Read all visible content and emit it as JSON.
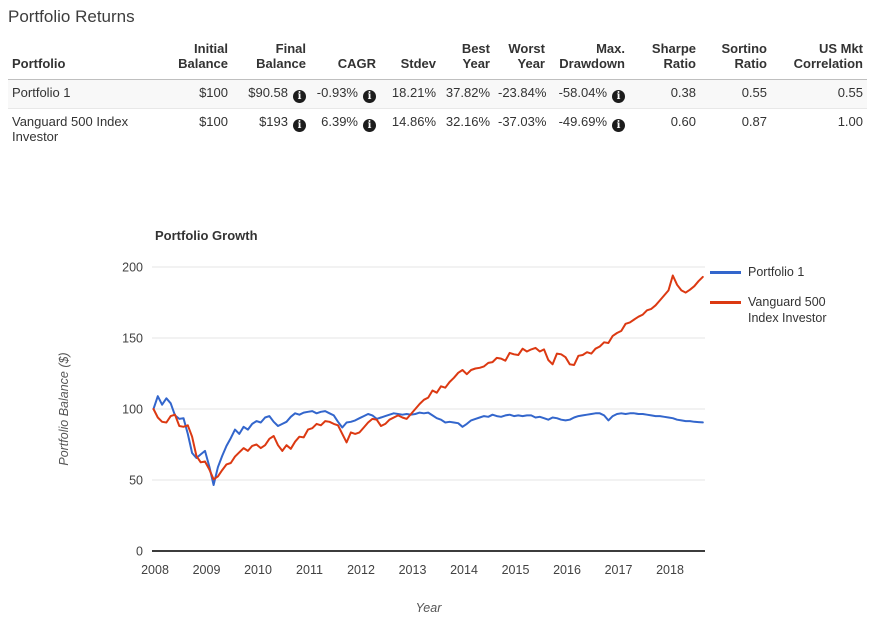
{
  "page_title": "Portfolio Returns",
  "table": {
    "columns": [
      "Portfolio",
      "Initial Balance",
      "Final Balance",
      "CAGR",
      "Stdev",
      "Best Year",
      "Worst Year",
      "Max. Drawdown",
      "Sharpe Ratio",
      "Sortino Ratio",
      "US Mkt Correlation"
    ],
    "rows": [
      {
        "portfolio": "Portfolio 1",
        "initial_balance": "$100",
        "final_balance": "$90.58",
        "cagr": "-0.93%",
        "stdev": "18.21%",
        "best_year": "37.82%",
        "worst_year": "-23.84%",
        "max_drawdown": "-58.04%",
        "sharpe_ratio": "0.38",
        "sortino_ratio": "0.55",
        "us_mkt_correlation": "0.55"
      },
      {
        "portfolio": "Vanguard 500 Index Investor",
        "initial_balance": "$100",
        "final_balance": "$193",
        "cagr": "6.39%",
        "stdev": "14.86%",
        "best_year": "32.16%",
        "worst_year": "-37.03%",
        "max_drawdown": "-49.69%",
        "sharpe_ratio": "0.60",
        "sortino_ratio": "0.87",
        "us_mkt_correlation": "1.00"
      }
    ]
  },
  "chart_data": {
    "type": "line",
    "title": "Portfolio Growth",
    "xlabel": "Year",
    "ylabel": "Portfolio Balance ($)",
    "x_start_year": 2008,
    "x_step_months": 1,
    "x_end": "2018-08",
    "x_ticks": [
      2008,
      2009,
      2010,
      2011,
      2012,
      2013,
      2014,
      2015,
      2016,
      2017,
      2018
    ],
    "y_ticks": [
      0,
      50,
      100,
      150,
      200
    ],
    "ylim": [
      0,
      210
    ],
    "grid": true,
    "legend_position": "right",
    "series": [
      {
        "name": "Portfolio 1",
        "legend_lines": [
          "Portfolio 1"
        ],
        "color": "#3366cc",
        "values": [
          100,
          109,
          103,
          107.5,
          104,
          95.5,
          93,
          93.5,
          82.5,
          69,
          65.5,
          68,
          70.5,
          59.5,
          46.5,
          59,
          67,
          74,
          79.5,
          85.5,
          82.5,
          87.5,
          85.5,
          89.5,
          91.5,
          90.5,
          94,
          95,
          91,
          88,
          89.5,
          91,
          94.5,
          97,
          96,
          97.5,
          98,
          98.5,
          97,
          98,
          98.5,
          97,
          95.5,
          91,
          87,
          90.5,
          91,
          92,
          93.5,
          95,
          96.5,
          95.5,
          93,
          94,
          95,
          96,
          97,
          96.5,
          96,
          96.5,
          96,
          96.5,
          97.5,
          97,
          97.5,
          95.5,
          93.5,
          92.5,
          90.5,
          91,
          90.5,
          90,
          87.5,
          89.5,
          92,
          93,
          94,
          95,
          94.5,
          96,
          95,
          94.5,
          95.5,
          96,
          95,
          95.5,
          95,
          95.5,
          95.5,
          94,
          94.5,
          93.5,
          92.5,
          94,
          93.5,
          92.5,
          92,
          92.5,
          94,
          95,
          95.5,
          96,
          96.5,
          97,
          97,
          95.5,
          92,
          95,
          96.5,
          97,
          96.5,
          97,
          97,
          96.5,
          96.5,
          96,
          95.5,
          95,
          95,
          94.5,
          94,
          93.5,
          92.5,
          92,
          91.5,
          91.5,
          91,
          90.8,
          90.58
        ]
      },
      {
        "name": "Vanguard 500 Index Investor",
        "legend_lines": [
          "Vanguard 500",
          "Index Investor"
        ],
        "color": "#dc3912",
        "values": [
          100,
          94,
          91,
          90.5,
          95,
          96,
          88,
          87.5,
          88.5,
          80.5,
          67,
          62.5,
          63,
          57.5,
          50.5,
          52.5,
          57,
          61,
          62,
          66.5,
          69.5,
          72.5,
          70.5,
          74,
          75,
          72.5,
          74.5,
          79,
          81,
          74.5,
          70.5,
          74.5,
          72,
          77,
          80.5,
          80,
          85.5,
          86.5,
          89.5,
          88.5,
          91.5,
          91,
          89.5,
          88.5,
          82.5,
          76.5,
          83.5,
          82.5,
          83.5,
          87,
          90.5,
          93,
          92.5,
          88,
          89.5,
          92.5,
          94,
          95.5,
          94,
          93,
          96.5,
          100,
          103.5,
          106.5,
          108,
          113,
          111.5,
          116,
          115,
          119,
          122,
          125.5,
          127.5,
          124.5,
          127.5,
          128.5,
          129,
          130,
          132.5,
          133,
          136,
          135.5,
          134,
          139.5,
          138.5,
          138,
          142.5,
          140.5,
          142,
          143,
          140.5,
          142,
          134.5,
          131.5,
          139,
          138.5,
          136.5,
          131.5,
          131,
          137.5,
          138,
          140,
          139,
          142.5,
          144,
          147,
          146.5,
          151.5,
          153.5,
          155,
          160,
          161,
          163,
          165,
          166.5,
          169.5,
          170.5,
          173,
          176.5,
          180,
          183.5,
          194,
          187.5,
          183.5,
          182,
          184,
          186.5,
          190,
          193
        ]
      }
    ]
  }
}
